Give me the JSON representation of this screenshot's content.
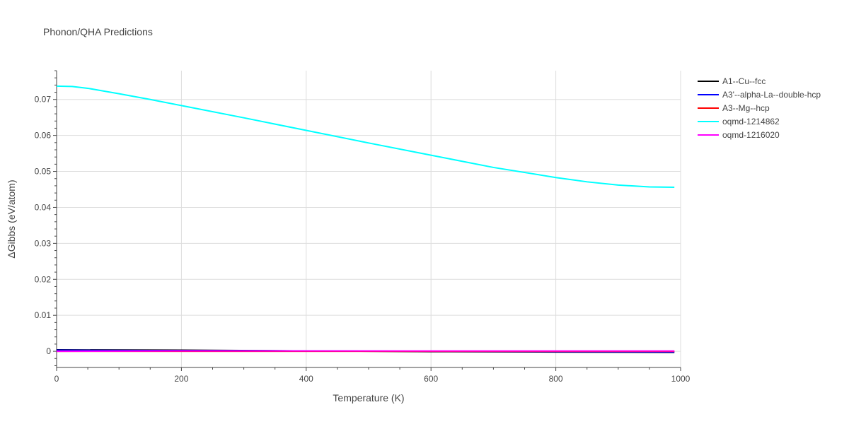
{
  "chart_data": {
    "type": "line",
    "title": "Phonon/QHA Predictions",
    "xlabel": "Temperature (K)",
    "ylabel": "ΔGibbs (eV/atom)",
    "xlim": [
      0,
      1000
    ],
    "ylim": [
      -0.0045,
      0.078
    ],
    "x_ticks": [
      0,
      200,
      400,
      600,
      800,
      1000
    ],
    "y_ticks": [
      0,
      0.01,
      0.02,
      0.03,
      0.04,
      0.05,
      0.06,
      0.07
    ],
    "x_tick_labels": [
      "0",
      "200",
      "400",
      "600",
      "800",
      "1000"
    ],
    "y_tick_labels": [
      "0",
      "0.01",
      "0.02",
      "0.03",
      "0.04",
      "0.05",
      "0.06",
      "0.07"
    ],
    "grid": true,
    "legend_position": "top-right, outside plot",
    "series": [
      {
        "name": "A1--Cu--fcc",
        "color": "#000000",
        "x": [
          0,
          200,
          400,
          600,
          800,
          990
        ],
        "y": [
          0.0004,
          0.0003,
          0.0001,
          -0.0001,
          -0.0002,
          -0.0003
        ]
      },
      {
        "name": "A3'--alpha-La--double-hcp",
        "color": "#0000ff",
        "x": [
          0,
          200,
          400,
          600,
          800,
          990
        ],
        "y": [
          0.0003,
          0.0002,
          0.0001,
          0.0,
          -0.0001,
          -0.0002
        ]
      },
      {
        "name": "A3--Mg--hcp",
        "color": "#ff0000",
        "x": [
          0,
          200,
          400,
          600,
          800,
          990
        ],
        "y": [
          0.0,
          0.0,
          0.0,
          0.0,
          0.0,
          0.0
        ]
      },
      {
        "name": "oqmd-1214862",
        "color": "#00ffff",
        "x": [
          0,
          25,
          50,
          100,
          150,
          200,
          300,
          400,
          500,
          600,
          700,
          800,
          850,
          900,
          950,
          990
        ],
        "y": [
          0.0737,
          0.0736,
          0.0731,
          0.0716,
          0.07,
          0.0683,
          0.0649,
          0.0614,
          0.0579,
          0.0545,
          0.0511,
          0.0483,
          0.0471,
          0.0462,
          0.0457,
          0.0456
        ]
      },
      {
        "name": "oqmd-1216020",
        "color": "#ff00ff",
        "x": [
          0,
          200,
          400,
          600,
          800,
          990
        ],
        "y": [
          0.0,
          0.0001,
          0.0001,
          0.0001,
          0.0001,
          0.0001
        ]
      }
    ]
  }
}
